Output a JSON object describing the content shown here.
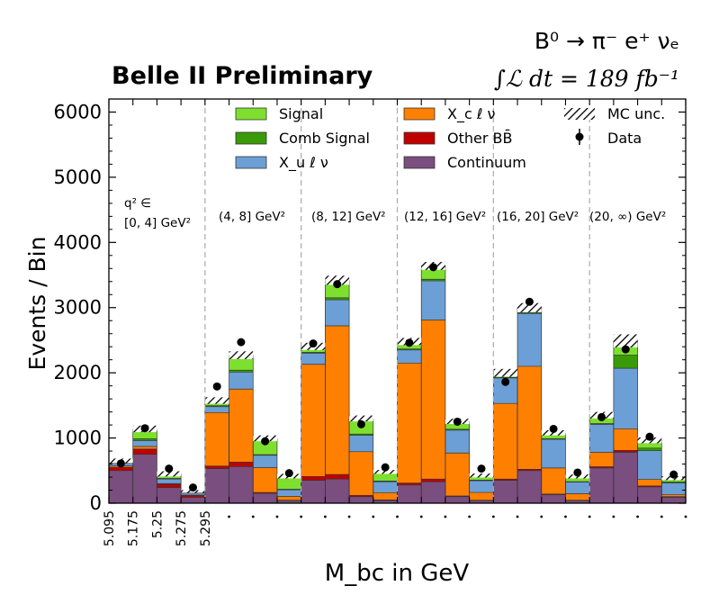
{
  "chart_data": {
    "type": "bar",
    "stacked": true,
    "title": "Belle II Preliminary",
    "decay_label": "B⁰ → π⁻ e⁺ νₑ",
    "lumi_label": "∫ℒ dt = 189 fb⁻¹",
    "xlabel": "M_bc in GeV",
    "ylabel": "Events / Bin",
    "ylim": [
      0,
      6200
    ],
    "yticks": [
      0,
      1000,
      2000,
      3000,
      4000,
      5000,
      6000
    ],
    "xtick_labels": [
      "5.095",
      "5.175",
      "5.25",
      "5.275",
      "5.295"
    ],
    "q2_bin_labels": [
      "q² ∈ [0, 4] GeV²",
      "(4, 8] GeV²",
      "(8, 12] GeV²",
      "(12, 16] GeV²",
      "(16, 20] GeV²",
      "(20, ∞) GeV²"
    ],
    "legend": {
      "position": "top",
      "entries": [
        "Signal",
        "Comb Signal",
        "X_u ℓ ν",
        "X_c ℓ ν",
        "Other BB̄",
        "Continuum",
        "MC unc.",
        "Data"
      ]
    },
    "colors": {
      "Signal": "#7ee02e",
      "Comb Signal": "#3a9a0a",
      "X_u": "#6c9fd6",
      "X_c": "#ff8000",
      "Other BB": "#c00000",
      "Continuum": "#7a4e7e"
    },
    "series": [
      {
        "name": "Continuum",
        "values": [
          500,
          750,
          240,
          90,
          530,
          560,
          150,
          40,
          350,
          370,
          100,
          40,
          280,
          330,
          100,
          40,
          350,
          500,
          130,
          40,
          540,
          780,
          250,
          90
        ]
      },
      {
        "name": "Other BB",
        "values": [
          50,
          80,
          50,
          30,
          40,
          70,
          15,
          5,
          60,
          70,
          20,
          10,
          30,
          40,
          10,
          5,
          20,
          20,
          10,
          5,
          20,
          30,
          15,
          10
        ]
      },
      {
        "name": "X_c ℓ ν",
        "values": [
          20,
          40,
          10,
          5,
          820,
          1120,
          380,
          60,
          1720,
          2280,
          670,
          110,
          1840,
          2440,
          660,
          120,
          1160,
          1580,
          400,
          100,
          220,
          330,
          100,
          30
        ]
      },
      {
        "name": "X_u ℓ ν",
        "values": [
          40,
          90,
          70,
          30,
          90,
          260,
          190,
          100,
          170,
          400,
          250,
          170,
          200,
          600,
          350,
          180,
          390,
          810,
          440,
          180,
          430,
          930,
          440,
          180
        ]
      },
      {
        "name": "Comb Signal",
        "values": [
          15,
          30,
          10,
          5,
          15,
          30,
          10,
          10,
          15,
          30,
          20,
          10,
          15,
          25,
          15,
          10,
          10,
          15,
          10,
          5,
          10,
          200,
          40,
          15
        ]
      },
      {
        "name": "Signal",
        "values": [
          25,
          150,
          70,
          20,
          80,
          230,
          250,
          200,
          90,
          270,
          240,
          140,
          115,
          205,
          120,
          70,
          70,
          75,
          90,
          80,
          130,
          220,
          120,
          60
        ]
      }
    ],
    "mc_unc": [
      70,
      100,
      80,
      40,
      100,
      120,
      90,
      70,
      110,
      140,
      90,
      60,
      110,
      120,
      80,
      60,
      120,
      140,
      80,
      60,
      100,
      200,
      90,
      60
    ],
    "data": [
      610,
      1150,
      530,
      240,
      1790,
      2470,
      950,
      460,
      2450,
      3360,
      1210,
      550,
      2460,
      3620,
      1250,
      530,
      1860,
      3090,
      1140,
      470,
      1320,
      2360,
      1020,
      440
    ]
  }
}
